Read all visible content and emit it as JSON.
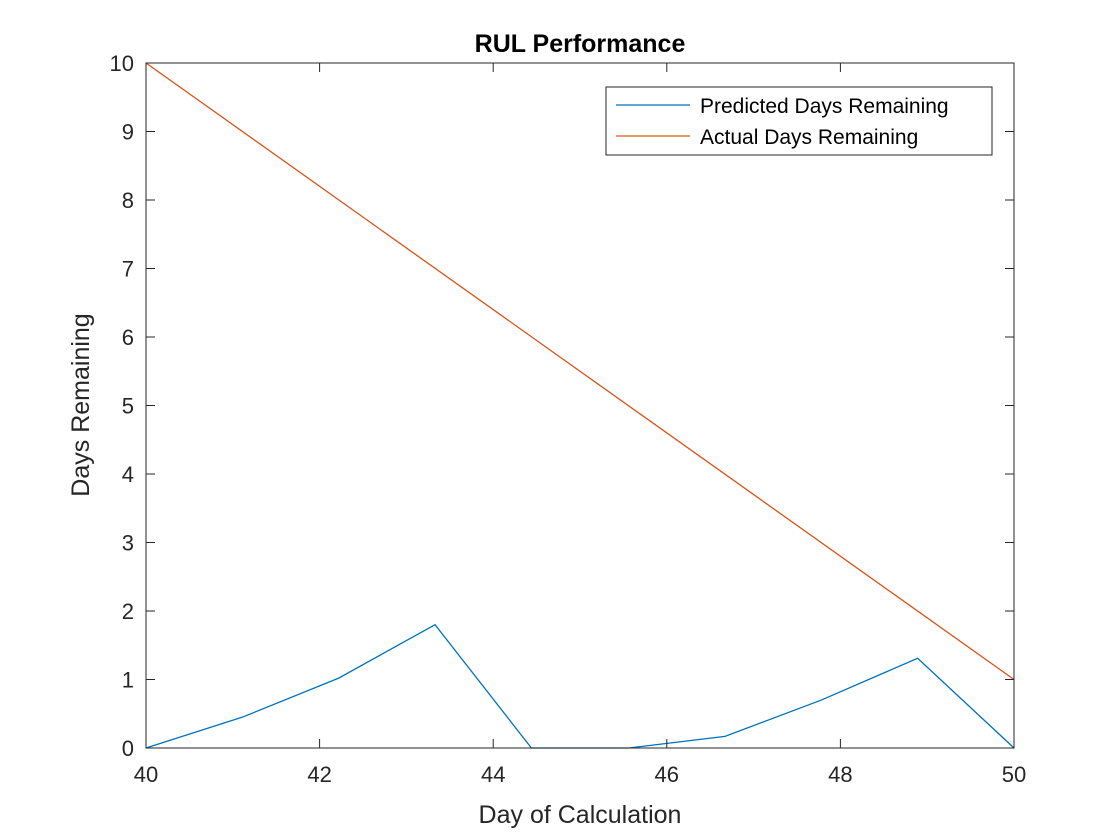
{
  "chart_data": {
    "type": "line",
    "title": "RUL Performance",
    "xlabel": "Day of Calculation",
    "ylabel": "Days Remaining",
    "xlim": [
      40,
      50
    ],
    "ylim": [
      0,
      10
    ],
    "xticks": [
      40,
      42,
      44,
      46,
      48,
      50
    ],
    "yticks": [
      0,
      1,
      2,
      3,
      4,
      5,
      6,
      7,
      8,
      9,
      10
    ],
    "grid": false,
    "legend_position": "top-right",
    "series": [
      {
        "name": "Predicted Days Remaining",
        "color": "#0072BD",
        "x": [
          40,
          41.11,
          42.22,
          43.33,
          44.44,
          45.56,
          46.67,
          47.78,
          48.89,
          50
        ],
        "y": [
          0,
          0.45,
          1.02,
          1.8,
          0,
          0,
          0.17,
          0.7,
          1.31,
          0
        ]
      },
      {
        "name": "Actual Days Remaining",
        "color": "#D95319",
        "x": [
          40,
          50
        ],
        "y": [
          10,
          1
        ]
      }
    ]
  }
}
